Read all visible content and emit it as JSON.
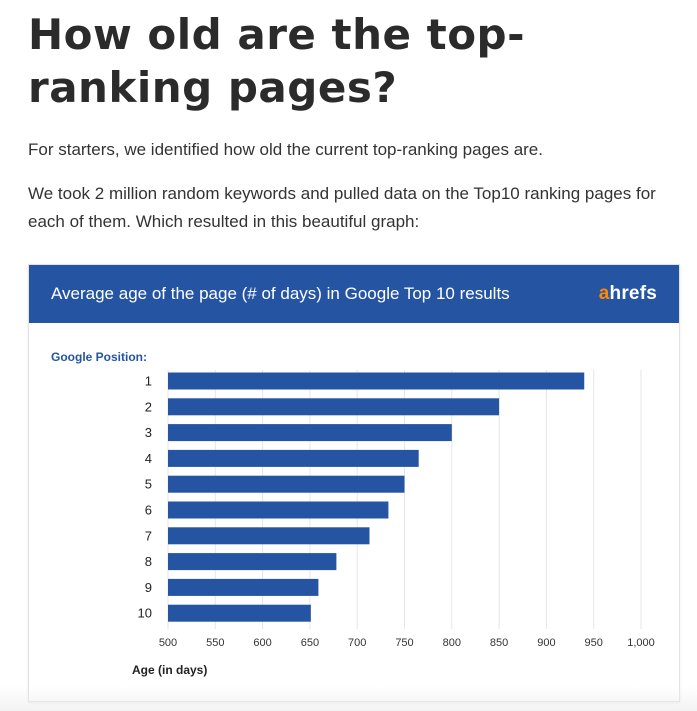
{
  "article": {
    "heading": "How old are the top-ranking pages?",
    "paragraph1": "For starters, we identified how old the current top-ranking pages are.",
    "paragraph2": "We took 2 million random keywords and pulled data on the Top10 ranking pages for each of them. Which resulted in this beautiful graph:"
  },
  "card": {
    "logo_accent": "a",
    "logo_rest": "hrefs"
  },
  "colors": {
    "header": "#2554a3",
    "bar": "#2554a3",
    "logo_accent": "#ff8800"
  },
  "chart_data": {
    "type": "bar",
    "orientation": "horizontal",
    "title": "Average age of the page (# of days) in Google Top 10 results",
    "ylabel": "Google Position:",
    "xlabel": "Age (in days)",
    "categories": [
      "1",
      "2",
      "3",
      "4",
      "5",
      "6",
      "7",
      "8",
      "9",
      "10"
    ],
    "values": [
      940,
      850,
      800,
      765,
      750,
      733,
      713,
      678,
      659,
      651
    ],
    "xlim": [
      500,
      1000
    ],
    "x_ticks": [
      500,
      550,
      600,
      650,
      700,
      750,
      800,
      850,
      900,
      950,
      1000
    ],
    "x_tick_labels": [
      "500",
      "550",
      "600",
      "650",
      "700",
      "750",
      "800",
      "850",
      "900",
      "950",
      "1,000"
    ],
    "grid": "vertical",
    "legend": "none"
  }
}
